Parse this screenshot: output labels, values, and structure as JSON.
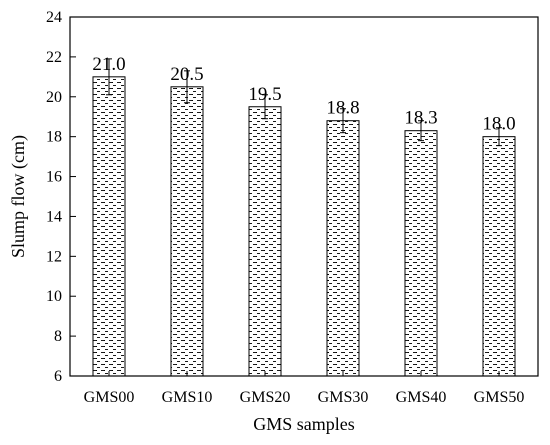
{
  "chart_data": {
    "type": "bar",
    "categories": [
      "GMS00",
      "GMS10",
      "GMS20",
      "GMS30",
      "GMS40",
      "GMS50"
    ],
    "values": [
      21.0,
      20.5,
      19.5,
      18.8,
      18.3,
      18.0
    ],
    "value_labels": [
      "21.0",
      "20.5",
      "19.5",
      "18.8",
      "18.3",
      "18.0"
    ],
    "error": [
      0.9,
      0.8,
      0.6,
      0.6,
      0.5,
      0.45
    ],
    "xlabel": "GMS samples",
    "ylabel": "Slump flow (cm)",
    "ylim": [
      6,
      24
    ],
    "yticks": [
      6,
      8,
      10,
      12,
      14,
      16,
      18,
      20,
      22,
      24
    ],
    "grid": false,
    "bar_fill": "dotted-pattern",
    "colors": {
      "bar_outline": "#000000",
      "pattern": "#000000",
      "background": "#ffffff"
    }
  }
}
